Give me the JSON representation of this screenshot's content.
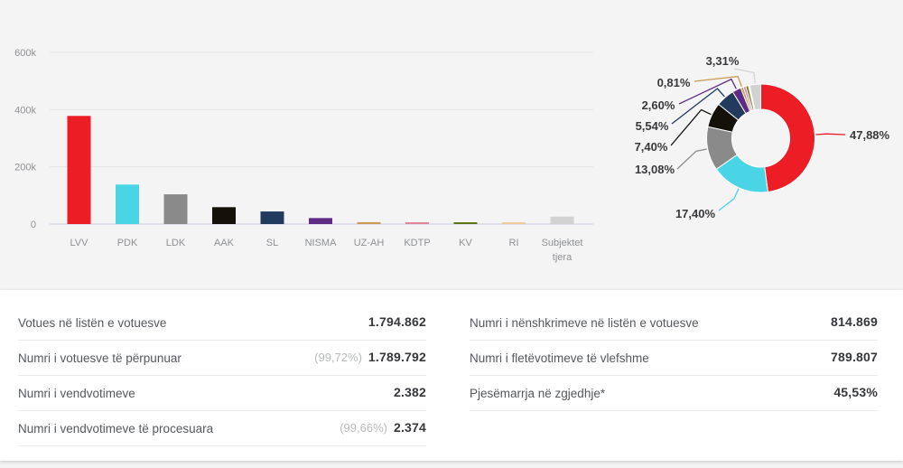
{
  "chart_data": [
    {
      "type": "bar",
      "title": "",
      "xlabel": "",
      "ylabel": "",
      "ylim": [
        0,
        600000
      ],
      "yticks": [
        "0",
        "200k",
        "400k",
        "600k"
      ],
      "ytick_values": [
        0,
        200000,
        400000,
        600000
      ],
      "grid": true,
      "categories": [
        "LVV",
        "PDK",
        "LDK",
        "AAK",
        "SL",
        "NISMA",
        "UZ-AH",
        "KDTP",
        "KV",
        "RI",
        "Subjektet tjera"
      ],
      "values": [
        378000,
        138000,
        104000,
        59000,
        44000,
        21000,
        6500,
        6000,
        6000,
        3000,
        26000
      ],
      "colors": [
        "#ec1d25",
        "#4ad5e7",
        "#8a8a8a",
        "#14110b",
        "#223a5e",
        "#5e2c87",
        "#cc9a52",
        "#e3839b",
        "#5c7416",
        "#f1cb97",
        "#d2d2d2"
      ]
    },
    {
      "type": "pie",
      "title": "",
      "donut": true,
      "legend_position": "none",
      "labels": [
        "LVV",
        "PDK",
        "LDK",
        "AAK",
        "SL",
        "NISMA",
        "UZ-AH",
        "KDTP",
        "KV",
        "RI",
        "Subjektet tjera"
      ],
      "values": [
        47.88,
        17.4,
        13.08,
        7.4,
        5.54,
        2.6,
        0.81,
        0.76,
        0.76,
        0.41,
        3.31
      ],
      "value_labels": [
        "47,88%",
        "17,40%",
        "13,08%",
        "7,40%",
        "5,54%",
        "2,60%",
        "0,81%",
        "",
        "",
        "",
        "3,31%"
      ],
      "colors": [
        "#ec1d25",
        "#4ad5e7",
        "#8a8a8a",
        "#14110b",
        "#223a5e",
        "#5e2c87",
        "#cc9a52",
        "#e3839b",
        "#5c7416",
        "#f1cb97",
        "#d2d2d2"
      ]
    }
  ],
  "stats": {
    "left": [
      {
        "label": "Votues në listën e votuesve",
        "pct": "",
        "value": "1.794.862"
      },
      {
        "label": "Numri i votuesve të përpunuar",
        "pct": "(99,72%)",
        "value": "1.789.792"
      },
      {
        "label": "Numri i vendvotimeve",
        "pct": "",
        "value": "2.382"
      },
      {
        "label": "Numri i vendvotimeve të procesuara",
        "pct": "(99,66%)",
        "value": "2.374"
      }
    ],
    "right": [
      {
        "label": "Numri i nënshkrimeve në listën e votuesve",
        "pct": "",
        "value": "814.869"
      },
      {
        "label": "Numri i fletëvotimeve të vlefshme",
        "pct": "",
        "value": "789.807"
      },
      {
        "label": "Pjesëmarrja në zgjedhje*",
        "pct": "",
        "value": "45,53%"
      }
    ]
  }
}
